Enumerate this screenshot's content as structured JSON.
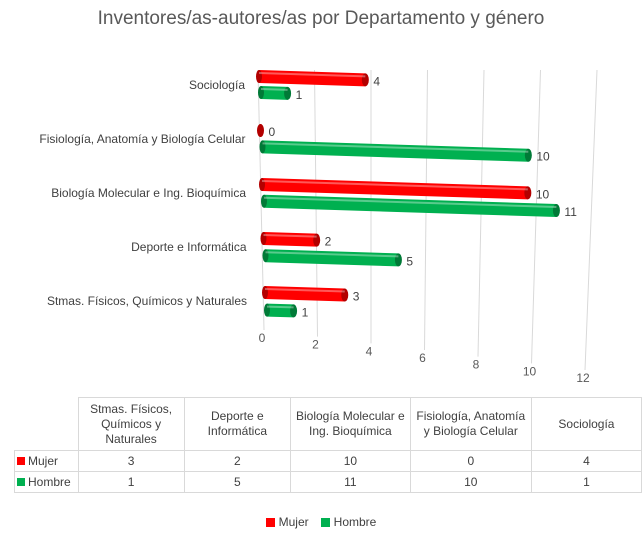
{
  "chart_data": {
    "type": "bar",
    "orientation": "horizontal",
    "title": "Inventores/as-autores/as por Departamento y género",
    "categories": [
      "Stmas. Físicos, Químicos y Naturales",
      "Deporte e Informática",
      "Biología Molecular e Ing. Bioquímica",
      "Fisiología, Anatomía y Biología Celular",
      "Sociología"
    ],
    "table_headers": [
      "Stmas. Físicos, Químicos y Naturales",
      "Deporte e Informática",
      "Biología Molecular e Ing. Bioquímica",
      "Fisiología, Anatomía y Biología Celular",
      "Sociología"
    ],
    "series": [
      {
        "name": "Mujer",
        "color": "#ff0000",
        "values": [
          3,
          2,
          10,
          0,
          4
        ]
      },
      {
        "name": "Hombre",
        "color": "#00b050",
        "values": [
          1,
          5,
          11,
          10,
          1
        ]
      }
    ],
    "xlim": [
      0,
      12
    ],
    "xticks": [
      0,
      2,
      4,
      6,
      8,
      10,
      12
    ],
    "grid": true,
    "legend": "bottom",
    "data_table": true
  }
}
